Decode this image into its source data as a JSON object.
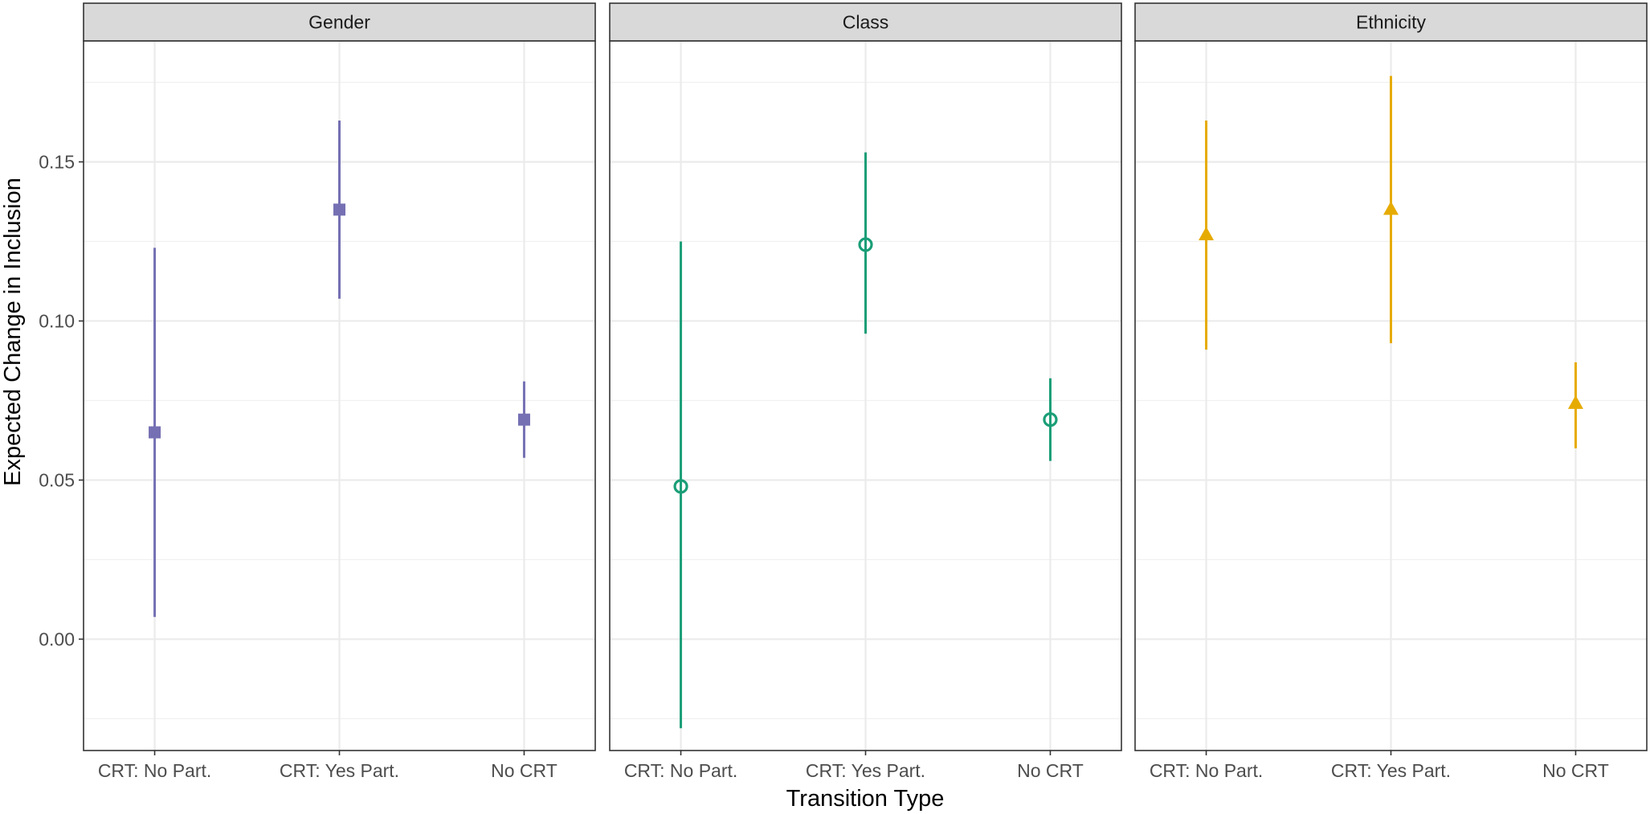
{
  "chart_data": {
    "type": "scatter",
    "subtype": "point-range (estimate with confidence interval), faceted",
    "xlabel": "Transition Type",
    "ylabel": "Expected Change in Inclusion",
    "categories": [
      "CRT: No Part.",
      "CRT: Yes Part.",
      "No CRT"
    ],
    "yticks": [
      0.0,
      0.05,
      0.1,
      0.15
    ],
    "ytick_labels": [
      "0.00",
      "0.05",
      "0.10",
      "0.15"
    ],
    "ylim": [
      -0.035,
      0.188
    ],
    "grid": true,
    "legend": "none",
    "panels": [
      {
        "title": "Gender",
        "color": "#7570b3",
        "marker": "filled-square",
        "points": [
          {
            "category": "CRT: No Part.",
            "estimate": 0.065,
            "lower": 0.007,
            "upper": 0.123
          },
          {
            "category": "CRT: Yes Part.",
            "estimate": 0.135,
            "lower": 0.107,
            "upper": 0.163
          },
          {
            "category": "No CRT",
            "estimate": 0.069,
            "lower": 0.057,
            "upper": 0.081
          }
        ]
      },
      {
        "title": "Class",
        "color": "#1b9e77",
        "marker": "open-circle",
        "points": [
          {
            "category": "CRT: No Part.",
            "estimate": 0.048,
            "lower": -0.028,
            "upper": 0.125
          },
          {
            "category": "CRT: Yes Part.",
            "estimate": 0.124,
            "lower": 0.096,
            "upper": 0.153
          },
          {
            "category": "No CRT",
            "estimate": 0.069,
            "lower": 0.056,
            "upper": 0.082
          }
        ]
      },
      {
        "title": "Ethnicity",
        "color": "#e6ab02",
        "marker": "filled-triangle",
        "points": [
          {
            "category": "CRT: No Part.",
            "estimate": 0.127,
            "lower": 0.091,
            "upper": 0.163
          },
          {
            "category": "CRT: Yes Part.",
            "estimate": 0.135,
            "lower": 0.093,
            "upper": 0.177
          },
          {
            "category": "No CRT",
            "estimate": 0.074,
            "lower": 0.06,
            "upper": 0.087
          }
        ]
      }
    ]
  }
}
